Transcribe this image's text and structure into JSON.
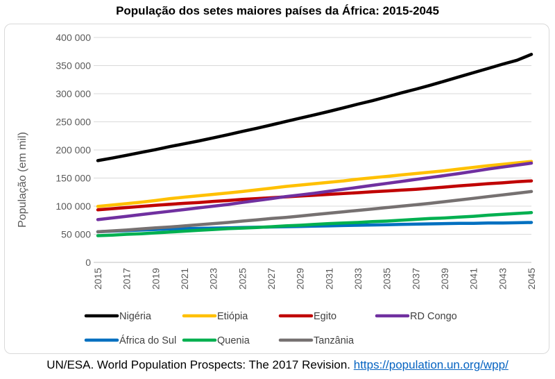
{
  "chart_data": {
    "type": "line",
    "title": "População dos setes maiores países da África: 2015-2045",
    "ylabel": "População (em mil)",
    "xlabel": "",
    "ylim": [
      0,
      400000
    ],
    "yticks": [
      0,
      50000,
      100000,
      150000,
      200000,
      250000,
      300000,
      350000,
      400000
    ],
    "ytick_labels": [
      "0",
      "50 000",
      "100 000",
      "150 000",
      "200 000",
      "250 000",
      "300 000",
      "350 000",
      "400 000"
    ],
    "x": [
      2015,
      2016,
      2017,
      2018,
      2019,
      2020,
      2021,
      2022,
      2023,
      2024,
      2025,
      2026,
      2027,
      2028,
      2029,
      2030,
      2031,
      2032,
      2033,
      2034,
      2035,
      2036,
      2037,
      2038,
      2039,
      2040,
      2041,
      2042,
      2043,
      2044,
      2045
    ],
    "xtick_labels": [
      "2015",
      "2017",
      "2019",
      "2021",
      "2023",
      "2025",
      "2027",
      "2029",
      "2031",
      "2033",
      "2035",
      "2037",
      "2039",
      "2041",
      "2043",
      "2045"
    ],
    "grid": "horizontal",
    "legend_position": "bottom",
    "series": [
      {
        "name": "Nigéria",
        "color": "#000000",
        "values": [
          181000,
          185500,
          190500,
          195500,
          200500,
          206000,
          211000,
          216000,
          221500,
          227000,
          233000,
          238500,
          244500,
          250500,
          256500,
          262500,
          268500,
          275000,
          281500,
          287500,
          294500,
          301500,
          308000,
          315000,
          322500,
          330000,
          337500,
          345000,
          352500,
          359500,
          370000
        ]
      },
      {
        "name": "Etiópia",
        "color": "#ffc000",
        "values": [
          99500,
          102000,
          104500,
          107000,
          110000,
          113500,
          116000,
          118500,
          121000,
          123500,
          126000,
          129000,
          132000,
          135000,
          137500,
          140000,
          142500,
          145000,
          148000,
          150500,
          153000,
          155500,
          158000,
          160500,
          163000,
          166000,
          169000,
          172000,
          174500,
          177000,
          179500
        ]
      },
      {
        "name": "Egito",
        "color": "#c00000",
        "values": [
          93500,
          95500,
          97500,
          99500,
          101500,
          103500,
          105000,
          106500,
          108500,
          110000,
          112000,
          113500,
          115000,
          116500,
          118000,
          119500,
          121000,
          122500,
          124000,
          125500,
          127000,
          128500,
          130000,
          132000,
          134000,
          136000,
          138000,
          140000,
          141500,
          143500,
          145000
        ]
      },
      {
        "name": "RD Congo",
        "color": "#7030a0",
        "values": [
          76000,
          79000,
          82000,
          85000,
          88000,
          91000,
          94000,
          97000,
          100000,
          103000,
          106500,
          110000,
          113500,
          117000,
          120000,
          123000,
          126500,
          130000,
          133500,
          137000,
          140500,
          144000,
          147500,
          151000,
          154500,
          158000,
          162000,
          166000,
          169500,
          173000,
          176500
        ]
      },
      {
        "name": "África do Sul",
        "color": "#0070c0",
        "values": [
          54500,
          55500,
          56500,
          57500,
          58500,
          59500,
          60000,
          60500,
          61000,
          61500,
          62000,
          62500,
          63000,
          63500,
          64000,
          64500,
          65000,
          65500,
          66000,
          66500,
          67000,
          67500,
          68000,
          68500,
          69000,
          69500,
          69500,
          70000,
          70000,
          70500,
          71000
        ]
      },
      {
        "name": "Quenia",
        "color": "#00b050",
        "values": [
          47500,
          48500,
          50000,
          51000,
          52500,
          54000,
          55500,
          57000,
          58500,
          60000,
          61000,
          62000,
          63500,
          65000,
          66000,
          67500,
          69000,
          70000,
          71000,
          72500,
          73500,
          75000,
          76500,
          78000,
          79000,
          80500,
          82000,
          84000,
          85500,
          87000,
          88500
        ]
      },
      {
        "name": "Tanzânia",
        "color": "#767171",
        "values": [
          54500,
          56000,
          57500,
          59500,
          61500,
          63000,
          65000,
          67000,
          69000,
          71000,
          73500,
          75500,
          78000,
          80000,
          82500,
          85000,
          87500,
          90000,
          92500,
          95000,
          97500,
          100000,
          102500,
          105000,
          108000,
          111000,
          114000,
          117000,
          120000,
          123000,
          126000
        ]
      }
    ]
  },
  "source": {
    "text": "UN/ESA. World Population Prospects: The 2017 Revision.",
    "link": "https://population.un.org/wpp/"
  }
}
